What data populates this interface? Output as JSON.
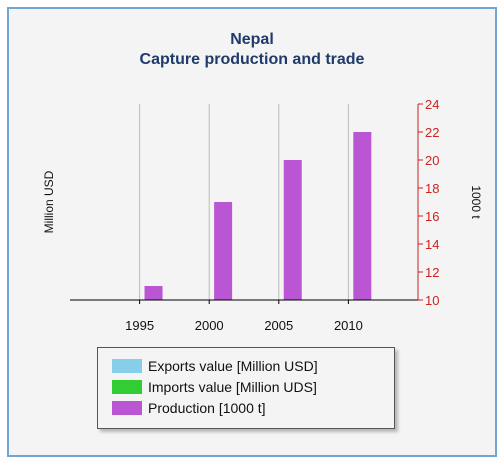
{
  "chart_data": {
    "type": "bar",
    "title": "Nepal",
    "subtitle": "Capture production and trade",
    "ylabel_left": "Million USD",
    "ylabel_right": "1000 t",
    "x_ticks": [
      1995,
      2000,
      2005,
      2010
    ],
    "xlim": [
      1990,
      2015
    ],
    "ylim_right": [
      10,
      24
    ],
    "y_ticks_right": [
      10,
      12,
      14,
      16,
      18,
      20,
      22,
      24
    ],
    "grid": "vertical",
    "legend_placement": "bottom",
    "series": [
      {
        "name": "Exports value [Million USD]",
        "color": "#87ceeb",
        "axis": "left",
        "x": [],
        "values": []
      },
      {
        "name": "Imports value [Million UDS]",
        "color": "#32cd32",
        "axis": "left",
        "x": [],
        "values": []
      },
      {
        "name": "Production [1000 t]",
        "color": "#ba55d3",
        "axis": "right",
        "x": [
          1996,
          2001,
          2006,
          2011
        ],
        "values": [
          11,
          17,
          20,
          22
        ]
      }
    ]
  }
}
